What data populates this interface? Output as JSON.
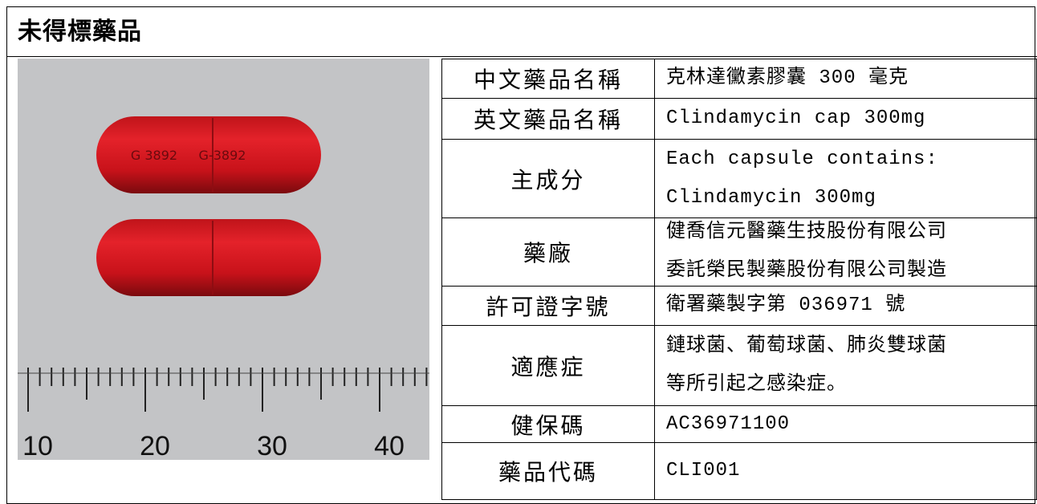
{
  "header": {
    "title": "未得標藥品"
  },
  "image": {
    "imprints": [
      "G 3892",
      "G-3892"
    ],
    "ruler_labels": [
      "10",
      "20",
      "30",
      "40"
    ]
  },
  "table": {
    "rows": [
      {
        "label": "中文藥品名稱",
        "lines": [
          "克林達黴素膠囊 300 毫克"
        ]
      },
      {
        "label": "英文藥品名稱",
        "lines": [
          "Clindamycin cap 300mg"
        ]
      },
      {
        "label": "主成分",
        "lines": [
          "Each capsule contains:",
          "Clindamycin 300mg"
        ]
      },
      {
        "label": "藥廠",
        "lines": [
          "健喬信元醫藥生技股份有限公司",
          "委託榮民製藥股份有限公司製造"
        ]
      },
      {
        "label": "許可證字號",
        "lines": [
          "衛署藥製字第 036971 號"
        ]
      },
      {
        "label": "適應症",
        "lines": [
          "鏈球菌、葡萄球菌、肺炎雙球菌",
          "等所引起之感染症。"
        ]
      },
      {
        "label": "健保碼",
        "lines": [
          "AC36971100"
        ]
      },
      {
        "label": "藥品代碼",
        "lines": [
          "CLI001"
        ]
      }
    ]
  }
}
